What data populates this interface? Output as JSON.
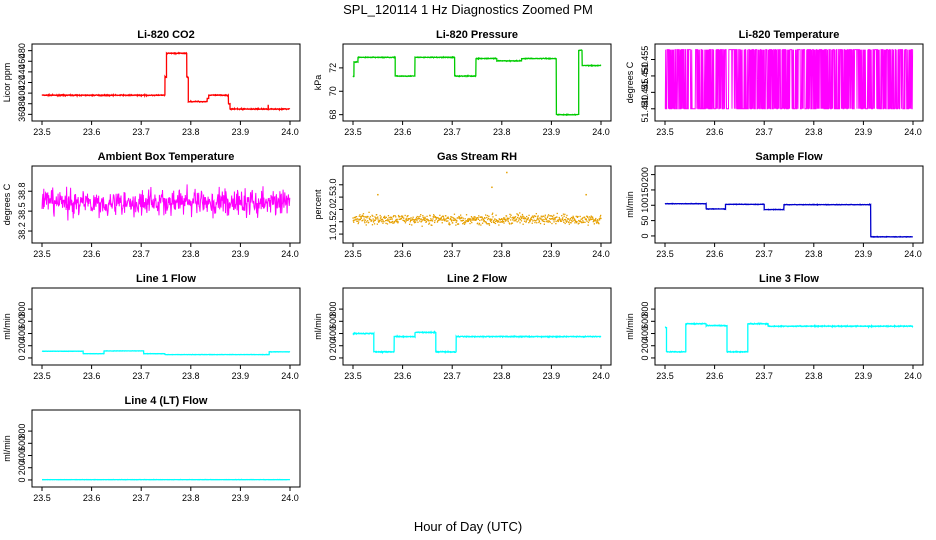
{
  "figure": {
    "title": "SPL_120114  1 Hz Diagnostics Zoomed PM",
    "xlabel": "Hour of Day (UTC)"
  },
  "chart_data": [
    {
      "type": "line",
      "title": "Li-820 CO2",
      "ylabel": "Licor ppm",
      "color": "#ff0000",
      "xlim": [
        23.5,
        24.0
      ],
      "ylim": [
        355,
        485
      ],
      "xticks": [
        "23.5",
        "23.6",
        "23.7",
        "23.8",
        "23.9",
        "24.0"
      ],
      "yticks": [
        "360",
        "380",
        "400",
        "420",
        "440",
        "460",
        "480"
      ],
      "segments": [
        [
          23.5,
          23.748,
          396
        ],
        [
          23.748,
          23.751,
          430
        ],
        [
          23.751,
          23.792,
          475
        ],
        [
          23.792,
          23.795,
          430
        ],
        [
          23.795,
          23.833,
          384
        ],
        [
          23.833,
          23.836,
          390
        ],
        [
          23.836,
          23.876,
          396
        ],
        [
          23.876,
          23.879,
          380
        ],
        [
          23.879,
          24.0,
          370
        ]
      ],
      "noise": 1.5,
      "style": "line"
    },
    {
      "type": "line",
      "title": "Li-820 Pressure",
      "ylabel": "kPa",
      "color": "#00cc00",
      "xlim": [
        23.5,
        24.0
      ],
      "ylim": [
        67.8,
        73.7
      ],
      "xticks": [
        "23.5",
        "23.6",
        "23.7",
        "23.8",
        "23.9",
        "24.0"
      ],
      "yticks": [
        "68",
        "70",
        "72"
      ],
      "segments": [
        [
          23.5,
          23.502,
          71.3
        ],
        [
          23.502,
          23.51,
          72.5
        ],
        [
          23.51,
          23.585,
          72.9
        ],
        [
          23.585,
          23.625,
          71.3
        ],
        [
          23.625,
          23.705,
          72.9
        ],
        [
          23.705,
          23.748,
          71.3
        ],
        [
          23.748,
          23.79,
          72.8
        ],
        [
          23.79,
          23.84,
          72.6
        ],
        [
          23.84,
          23.91,
          72.8
        ],
        [
          23.91,
          23.955,
          68.0
        ],
        [
          23.955,
          23.962,
          73.5
        ],
        [
          23.962,
          24.0,
          72.2
        ]
      ],
      "noise": 0.05,
      "style": "line"
    },
    {
      "type": "line",
      "title": "Li-820 Temperature",
      "ylabel": "degrees C",
      "color": "#ff00ff",
      "xlim": [
        23.5,
        24.0
      ],
      "ylim": [
        51.4375,
        51.4585
      ],
      "xticks": [
        "23.5",
        "23.6",
        "23.7",
        "23.8",
        "23.9",
        "24.0"
      ],
      "yticks": [
        "51.440",
        "51.445",
        "51.450",
        "51.455"
      ],
      "levels": [
        51.44,
        51.458
      ],
      "style": "binary"
    },
    {
      "type": "line",
      "title": "Ambient Box Temperature",
      "ylabel": "degrees C",
      "color": "#ff00ff",
      "xlim": [
        23.5,
        24.0
      ],
      "ylim": [
        38.08,
        39.12
      ],
      "xticks": [
        "23.5",
        "23.6",
        "23.7",
        "23.8",
        "23.9",
        "24.0"
      ],
      "yticks": [
        "38.2",
        "38.5",
        "38.8"
      ],
      "mean": 38.63,
      "spread": 0.35,
      "style": "noise"
    },
    {
      "type": "scatter",
      "title": "Gas Stream RH",
      "ylabel": "percent",
      "color": "#e6a000",
      "xlim": [
        23.5,
        24.0
      ],
      "ylim": [
        0.8,
        3.6
      ],
      "xticks": [
        "23.5",
        "23.6",
        "23.7",
        "23.8",
        "23.9",
        "24.0"
      ],
      "yticks": [
        "1.0",
        "1.5",
        "2.0",
        "2.5",
        "3.0"
      ],
      "mean": 1.6,
      "spread": 0.35,
      "spikes": [
        [
          23.81,
          3.5
        ],
        [
          23.78,
          2.9
        ],
        [
          23.97,
          2.6
        ],
        [
          23.55,
          2.6
        ]
      ],
      "style": "dots"
    },
    {
      "type": "line",
      "title": "Sample Flow",
      "ylabel": "ml/min",
      "color": "#0000cc",
      "xlim": [
        23.5,
        24.0
      ],
      "ylim": [
        -10,
        215
      ],
      "xticks": [
        "23.5",
        "23.6",
        "23.7",
        "23.8",
        "23.9",
        "24.0"
      ],
      "yticks": [
        "0",
        "50",
        "100",
        "150",
        "200"
      ],
      "segments": [
        [
          23.5,
          23.583,
          105
        ],
        [
          23.583,
          23.622,
          88
        ],
        [
          23.622,
          23.7,
          103
        ],
        [
          23.7,
          23.74,
          86
        ],
        [
          23.74,
          23.915,
          102
        ],
        [
          23.915,
          24.0,
          -3
        ]
      ],
      "noise": 1.2,
      "style": "line"
    },
    {
      "type": "line",
      "title": "Line 1 Flow",
      "ylabel": "ml/min",
      "color": "#00ffff",
      "xlim": [
        23.5,
        24.0
      ],
      "ylim": [
        -50,
        1080
      ],
      "xticks": [
        "23.5",
        "23.6",
        "23.7",
        "23.8",
        "23.9",
        "24.0"
      ],
      "yticks": [
        "0",
        "200",
        "400",
        "600",
        "800"
      ],
      "segments": [
        [
          23.5,
          23.583,
          110
        ],
        [
          23.583,
          23.625,
          70
        ],
        [
          23.625,
          23.705,
          115
        ],
        [
          23.705,
          23.748,
          70
        ],
        [
          23.748,
          23.958,
          55
        ],
        [
          23.958,
          24.0,
          100
        ]
      ],
      "noise": 4,
      "style": "line"
    },
    {
      "type": "line",
      "title": "Line 2 Flow",
      "ylabel": "ml/min",
      "color": "#00ffff",
      "xlim": [
        23.5,
        24.0
      ],
      "ylim": [
        -50,
        1080
      ],
      "xticks": [
        "23.5",
        "23.6",
        "23.7",
        "23.8",
        "23.9",
        "24.0"
      ],
      "yticks": [
        "0",
        "200",
        "400",
        "600",
        "800"
      ],
      "segments": [
        [
          23.5,
          23.542,
          400
        ],
        [
          23.542,
          23.583,
          100
        ],
        [
          23.583,
          23.625,
          350
        ],
        [
          23.625,
          23.667,
          420
        ],
        [
          23.667,
          23.708,
          100
        ],
        [
          23.708,
          24.0,
          350
        ]
      ],
      "noise": 12,
      "style": "line"
    },
    {
      "type": "line",
      "title": "Line 3 Flow",
      "ylabel": "ml/min",
      "color": "#00ffff",
      "xlim": [
        23.5,
        24.0
      ],
      "ylim": [
        -50,
        1080
      ],
      "xticks": [
        "23.5",
        "23.6",
        "23.7",
        "23.8",
        "23.9",
        "24.0"
      ],
      "yticks": [
        "0",
        "200",
        "400",
        "600",
        "800"
      ],
      "segments": [
        [
          23.5,
          23.503,
          500
        ],
        [
          23.503,
          23.542,
          100
        ],
        [
          23.542,
          23.583,
          560
        ],
        [
          23.583,
          23.625,
          530
        ],
        [
          23.625,
          23.667,
          100
        ],
        [
          23.667,
          23.708,
          560
        ],
        [
          23.708,
          24.0,
          520
        ]
      ],
      "noise": 12,
      "style": "line"
    },
    {
      "type": "line",
      "title": "Line 4 (LT) Flow",
      "ylabel": "ml/min",
      "color": "#00ffff",
      "xlim": [
        23.5,
        24.0
      ],
      "ylim": [
        -50,
        1080
      ],
      "xticks": [
        "23.5",
        "23.6",
        "23.7",
        "23.8",
        "23.9",
        "24.0"
      ],
      "yticks": [
        "0",
        "200",
        "400",
        "600",
        "800"
      ],
      "segments": [
        [
          23.5,
          24.0,
          5
        ]
      ],
      "noise": 3,
      "style": "line"
    }
  ]
}
